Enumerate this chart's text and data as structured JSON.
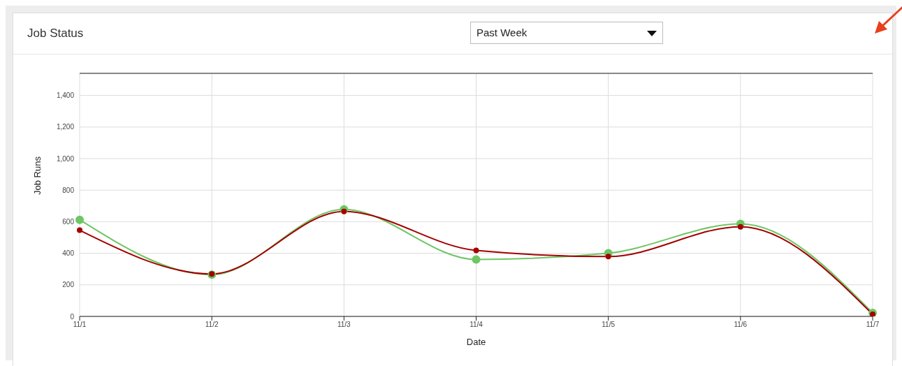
{
  "chart_data": {
    "type": "line",
    "title": "Job Status",
    "xlabel": "Date",
    "ylabel": "Job Runs",
    "annotations": [
      "Past Week"
    ],
    "categories": [
      "11/1",
      "11/2",
      "11/3",
      "11/4",
      "11/5",
      "11/6",
      "11/7"
    ],
    "series": [
      {
        "color": "#6ec664",
        "values": [
          612,
          264,
          678,
          361,
          401,
          586,
          22
        ]
      },
      {
        "color": "#a30000",
        "values": [
          546,
          269,
          665,
          418,
          379,
          568,
          13
        ]
      }
    ],
    "ylim": [
      0,
      1540
    ],
    "yticks": [
      0,
      200,
      {
        "value": 400,
        "label": "400"
      },
      600,
      800,
      {
        "value": 1000,
        "label": "1,000"
      },
      {
        "value": 1200,
        "label": "1,200"
      },
      {
        "value": 1400,
        "label": "1,400"
      }
    ],
    "grid": true,
    "marker": "circle",
    "line_style": "solid",
    "legend": false
  }
}
